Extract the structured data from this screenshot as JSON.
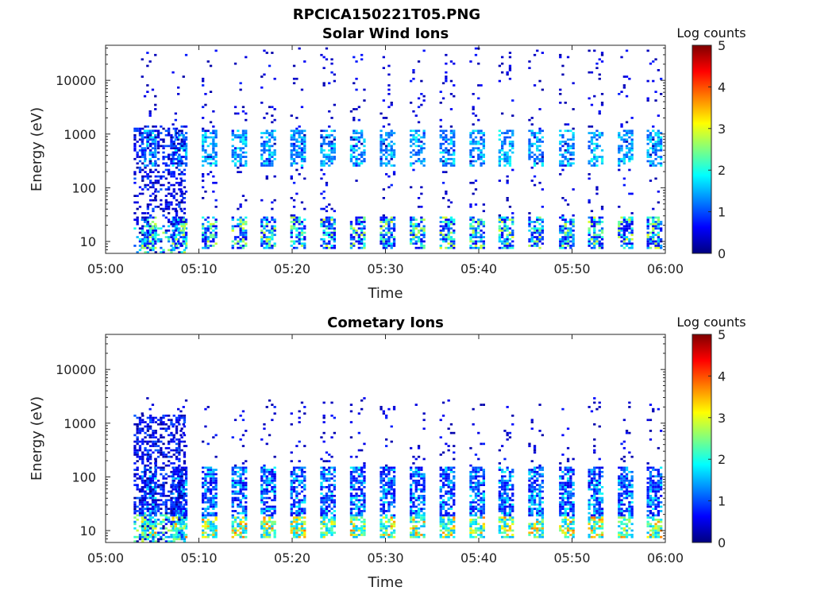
{
  "figure": {
    "title": "RPCICA150221T05.PNG"
  },
  "chart_data": [
    {
      "type": "heatmap",
      "title": "Solar Wind Ions",
      "xlabel": "Time",
      "ylabel": "Energy (eV)",
      "x_ticks": [
        "05:00",
        "05:10",
        "05:20",
        "05:30",
        "05:40",
        "05:50",
        "06:00"
      ],
      "x_range": [
        "05:00",
        "06:00"
      ],
      "y_scale": "log",
      "y_ticks": [
        "10",
        "100",
        "1000",
        "10000"
      ],
      "y_range": [
        6,
        45000
      ],
      "colorbar": {
        "label": "Log counts",
        "ticks": [
          "0",
          "1",
          "2",
          "3",
          "4",
          "5"
        ],
        "range": [
          0,
          5
        ],
        "colormap": "jet"
      },
      "cycle_start_minutes": [
        3.8,
        7.1,
        10.3,
        13.5,
        16.6,
        19.8,
        23.0,
        26.2,
        29.4,
        32.6,
        35.8,
        39.0,
        42.1,
        45.3,
        48.6,
        51.7,
        54.9,
        58.0
      ],
      "bands": [
        {
          "name": "low_energy",
          "energy_range": [
            7,
            28
          ],
          "typical_log_counts": [
            0.5,
            3.0
          ]
        },
        {
          "name": "solar_wind_beam",
          "energy_range": [
            250,
            1200
          ],
          "typical_log_counts": [
            1.0,
            2.0
          ]
        },
        {
          "name": "sparse_background",
          "energy_range": [
            30,
            40000
          ],
          "typical_log_counts": [
            0.2,
            0.8
          ]
        }
      ]
    },
    {
      "type": "heatmap",
      "title": "Cometary Ions",
      "xlabel": "Time",
      "ylabel": "Energy (eV)",
      "x_ticks": [
        "05:00",
        "05:10",
        "05:20",
        "05:30",
        "05:40",
        "05:50",
        "06:00"
      ],
      "x_range": [
        "05:00",
        "06:00"
      ],
      "y_scale": "log",
      "y_ticks": [
        "10",
        "100",
        "1000",
        "10000"
      ],
      "y_range": [
        6,
        45000
      ],
      "colorbar": {
        "label": "Log counts",
        "ticks": [
          "0",
          "1",
          "2",
          "3",
          "4",
          "5"
        ],
        "range": [
          0,
          5
        ],
        "colormap": "jet"
      },
      "cycle_start_minutes": [
        3.8,
        7.1,
        10.3,
        13.5,
        16.6,
        19.8,
        23.0,
        26.2,
        29.4,
        32.6,
        35.8,
        39.0,
        42.1,
        45.3,
        48.6,
        51.7,
        54.9,
        58.0
      ],
      "bands": [
        {
          "name": "low_energy_peak",
          "energy_range": [
            7,
            18
          ],
          "typical_log_counts": [
            1.5,
            3.8
          ]
        },
        {
          "name": "cometary_bulk",
          "energy_range": [
            18,
            150
          ],
          "typical_log_counts": [
            0.5,
            2.0
          ]
        },
        {
          "name": "sparse_background",
          "energy_range": [
            150,
            3000
          ],
          "typical_log_counts": [
            0.2,
            0.8
          ]
        }
      ]
    }
  ]
}
